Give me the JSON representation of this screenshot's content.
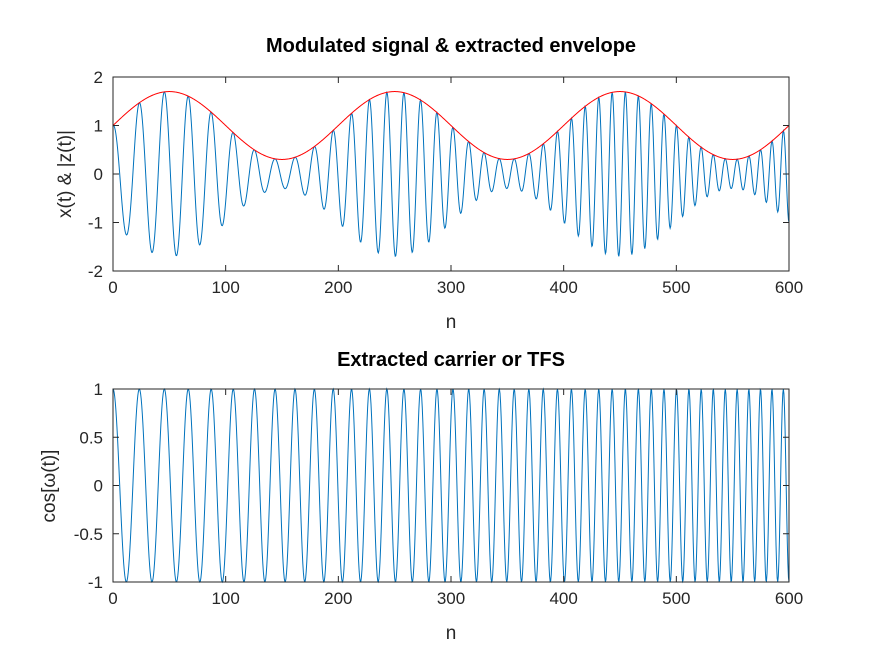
{
  "chart_data": [
    {
      "type": "line",
      "title": "Modulated signal & extracted envelope",
      "xlabel": "n",
      "ylabel": "x(t) & |z(t)|",
      "xlim": [
        0,
        600
      ],
      "ylim": [
        -2,
        2
      ],
      "xticks": [
        0,
        100,
        200,
        300,
        400,
        500,
        600
      ],
      "xtick_labels": [
        "0",
        "100",
        "200",
        "300",
        "400",
        "500",
        "600"
      ],
      "yticks": [
        -2,
        -1,
        0,
        1,
        2
      ],
      "ytick_labels": [
        "-2",
        "-1",
        "0",
        "1",
        "2"
      ],
      "grid": false,
      "series": [
        {
          "color": "#0072BD",
          "kind": "modulated signal x(t)",
          "envelope": {
            "offset": 1.0,
            "amplitude": 0.7,
            "period_samples": 200,
            "peak_at": 50
          },
          "carrier": {
            "start_period_samples": 24,
            "end_period_samples": 10,
            "phase_at_zero": 0
          }
        },
        {
          "color": "#FF0000",
          "kind": "envelope |z(t)|",
          "envelope": {
            "offset": 1.0,
            "amplitude": 0.7,
            "period_samples": 200,
            "peak_at": 50
          }
        }
      ]
    },
    {
      "type": "line",
      "title": "Extracted carrier or TFS",
      "xlabel": "n",
      "ylabel": "cos[ω(t)]",
      "xlim": [
        0,
        600
      ],
      "ylim": [
        -1,
        1
      ],
      "xticks": [
        0,
        100,
        200,
        300,
        400,
        500,
        600
      ],
      "xtick_labels": [
        "0",
        "100",
        "200",
        "300",
        "400",
        "500",
        "600"
      ],
      "yticks": [
        -1,
        -0.5,
        0,
        0.5,
        1
      ],
      "ytick_labels": [
        "-1",
        "-0.5",
        "0",
        "0.5",
        "1"
      ],
      "grid": false,
      "series": [
        {
          "color": "#0072BD",
          "kind": "carrier cos(phase)",
          "carrier": {
            "start_period_samples": 24,
            "end_period_samples": 10,
            "phase_at_zero": 0
          }
        }
      ]
    }
  ]
}
